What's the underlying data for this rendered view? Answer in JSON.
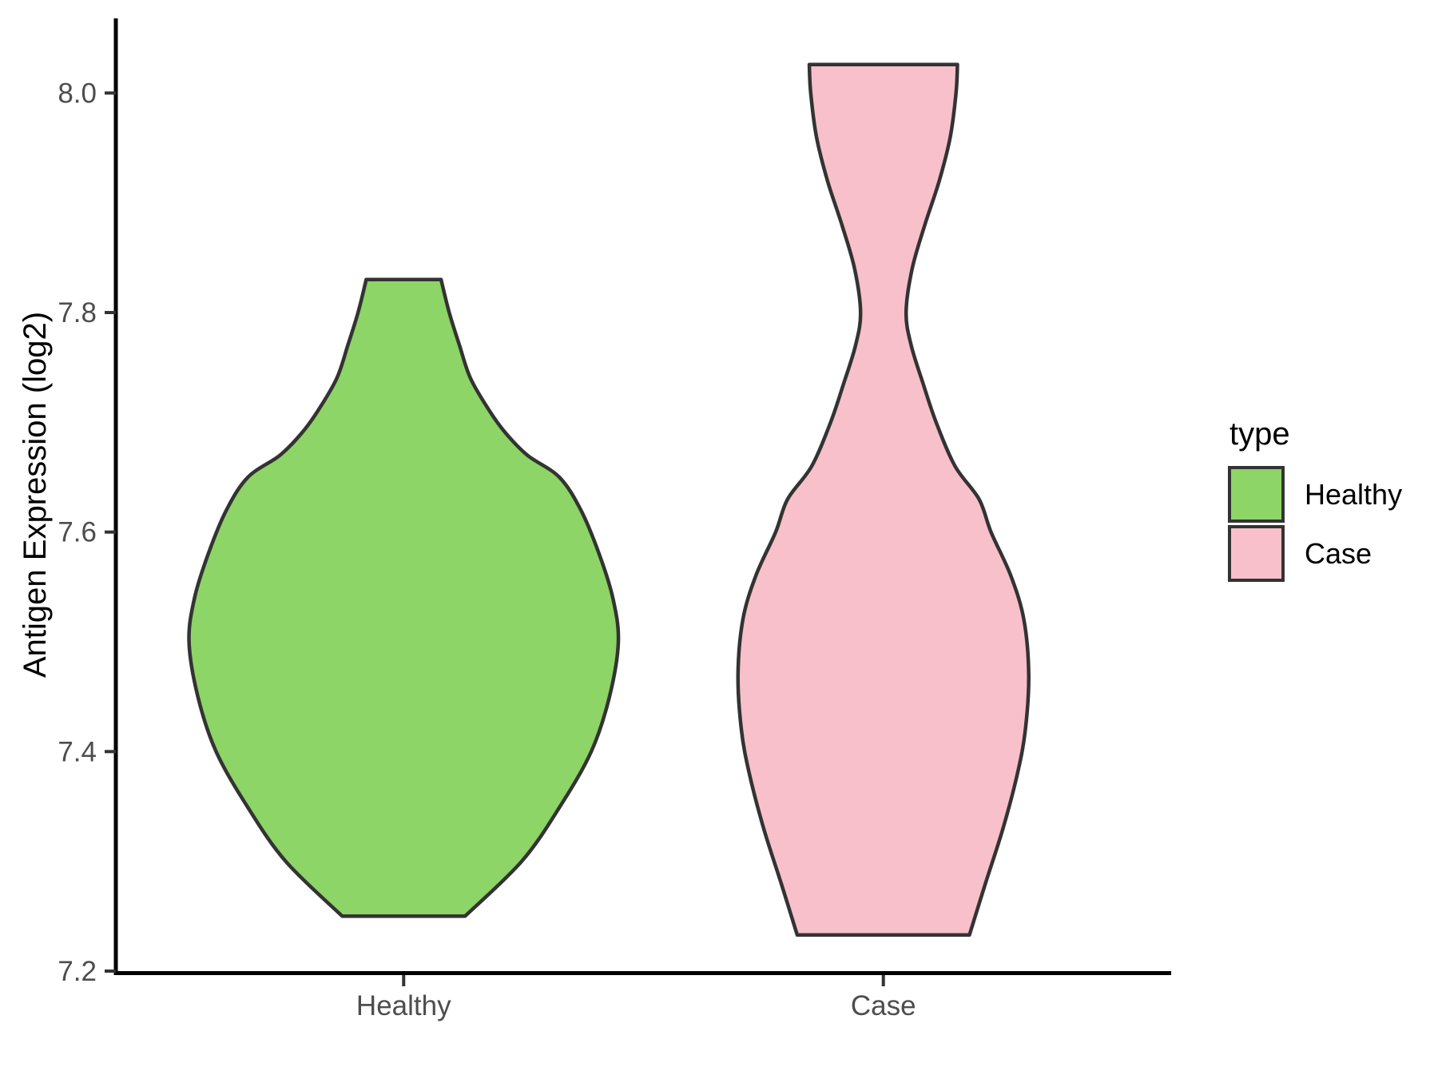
{
  "chart_data": {
    "type": "violin",
    "title": "",
    "xlabel": "",
    "ylabel": "Antigen Expression (log2)",
    "categories": [
      "Healthy",
      "Case"
    ],
    "x_tick_labels": [
      "Healthy",
      "Case"
    ],
    "y_ticks": [
      7.2,
      7.4,
      7.6,
      7.8,
      8.0
    ],
    "y_tick_labels": [
      "7.2",
      "7.4",
      "7.6",
      "7.8",
      "8.0"
    ],
    "ylim": [
      7.2,
      8.068
    ],
    "grid": "off",
    "violin_max_width": 0.9,
    "series": [
      {
        "name": "Healthy",
        "fill": "#8DD566",
        "min": 7.25,
        "max": 7.83,
        "peak_at": 7.5,
        "density": [
          [
            7.25,
            0.256
          ],
          [
            7.3,
            0.492
          ],
          [
            7.35,
            0.652
          ],
          [
            7.4,
            0.782
          ],
          [
            7.45,
            0.858
          ],
          [
            7.5,
            0.895
          ],
          [
            7.54,
            0.872
          ],
          [
            7.58,
            0.815
          ],
          [
            7.62,
            0.739
          ],
          [
            7.65,
            0.649
          ],
          [
            7.67,
            0.516
          ],
          [
            7.69,
            0.426
          ],
          [
            7.71,
            0.359
          ],
          [
            7.74,
            0.279
          ],
          [
            7.77,
            0.233
          ],
          [
            7.8,
            0.19
          ],
          [
            7.83,
            0.156
          ]
        ]
      },
      {
        "name": "Case",
        "fill": "#F8C0CB",
        "min": 7.23,
        "max": 8.03,
        "peak_at": 7.47,
        "neck_at": 7.8,
        "density": [
          [
            7.233,
            0.359
          ],
          [
            7.28,
            0.426
          ],
          [
            7.33,
            0.499
          ],
          [
            7.38,
            0.559
          ],
          [
            7.42,
            0.592
          ],
          [
            7.47,
            0.606
          ],
          [
            7.52,
            0.586
          ],
          [
            7.56,
            0.532
          ],
          [
            7.6,
            0.449
          ],
          [
            7.63,
            0.399
          ],
          [
            7.66,
            0.299
          ],
          [
            7.7,
            0.22
          ],
          [
            7.735,
            0.166
          ],
          [
            7.77,
            0.116
          ],
          [
            7.8,
            0.095
          ],
          [
            7.84,
            0.12
          ],
          [
            7.88,
            0.173
          ],
          [
            7.92,
            0.233
          ],
          [
            7.96,
            0.279
          ],
          [
            8.0,
            0.303
          ],
          [
            8.026,
            0.309
          ]
        ]
      }
    ],
    "legend": {
      "title": "type",
      "position": "right",
      "entries": [
        {
          "label": "Healthy",
          "color": "#8DD566"
        },
        {
          "label": "Case",
          "color": "#F8C0CB"
        }
      ]
    },
    "style": {
      "outline": "#333333",
      "axis_line": "#000000",
      "tick_color": "#333333",
      "tick_label_color": "#4D4D4D",
      "text_color": "#000000",
      "background": "#FFFFFF"
    }
  }
}
